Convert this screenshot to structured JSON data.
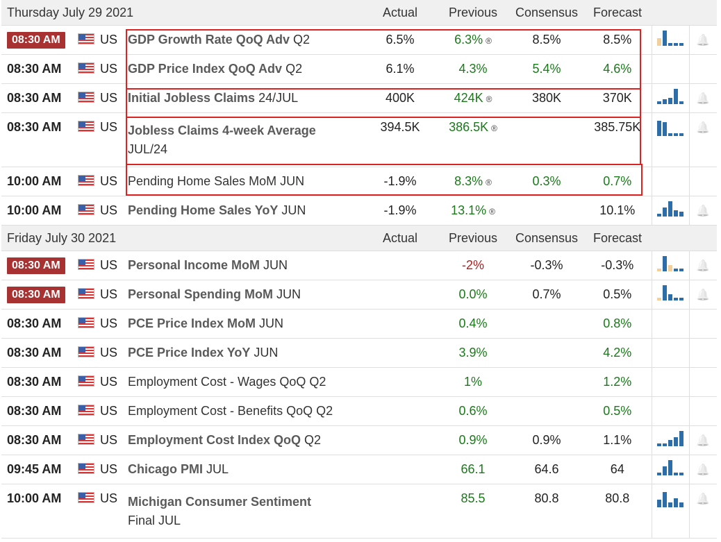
{
  "days": [
    {
      "date": "Thursday July 29 2021",
      "headers": {
        "actual": "Actual",
        "previous": "Previous",
        "consensus": "Consensus",
        "forecast": "Forecast"
      },
      "events": [
        {
          "time": "08:30 AM",
          "badge": true,
          "country": "US",
          "name_bold": "GDP Growth Rate QoQ Adv",
          "name_reg": " Q2",
          "actual": "6.5%",
          "previous": "6.3%",
          "prev_rev": "®",
          "prev_color": "green",
          "consensus": "8.5%",
          "cons_color": "",
          "forecast": "8.5%",
          "fc_color": "",
          "spark": [
            0.5,
            1,
            0.2,
            0.2,
            0.2
          ],
          "spark_colors": [
            "#f2cf9b",
            "#2e6ea8",
            "#2e6ea8",
            "#2e6ea8",
            "#2e6ea8"
          ],
          "bell": true
        },
        {
          "time": "08:30 AM",
          "badge": false,
          "country": "US",
          "name_bold": "GDP Price Index QoQ Adv",
          "name_reg": " Q2",
          "actual": "6.1%",
          "previous": "4.3%",
          "prev_rev": "",
          "prev_color": "green",
          "consensus": "5.4%",
          "cons_color": "green",
          "forecast": "4.6%",
          "fc_color": "green",
          "spark": [],
          "spark_colors": [],
          "bell": false
        },
        {
          "time": "08:30 AM",
          "badge": false,
          "country": "US",
          "name_bold": "Initial Jobless Claims",
          "name_reg": " 24/JUL",
          "actual": "400K",
          "previous": "424K",
          "prev_rev": "®",
          "prev_color": "green",
          "consensus": "380K",
          "cons_color": "",
          "forecast": "370K",
          "fc_color": "",
          "spark": [
            0.2,
            0.3,
            0.4,
            1,
            0.2
          ],
          "spark_colors": [
            "#2e6ea8",
            "#2e6ea8",
            "#2e6ea8",
            "#2e6ea8",
            "#2e6ea8"
          ],
          "bell": true
        },
        {
          "time": "08:30 AM",
          "badge": false,
          "country": "US",
          "name_bold": "Jobless Claims 4-week Average",
          "name_reg": "",
          "name_line2": "JUL/24",
          "actual": "394.5K",
          "previous": "386.5K",
          "prev_rev": "®",
          "prev_color": "green",
          "consensus": "",
          "cons_color": "",
          "forecast": "385.75K",
          "fc_color": "",
          "spark": [
            1,
            0.9,
            0.2,
            0.2,
            0.2
          ],
          "spark_colors": [
            "#2e6ea8",
            "#2e6ea8",
            "#2e6ea8",
            "#2e6ea8",
            "#2e6ea8"
          ],
          "bell": true
        },
        {
          "time": "10:00 AM",
          "badge": false,
          "country": "US",
          "name_bold": "",
          "name_reg": "Pending Home Sales MoM JUN",
          "actual": "-1.9%",
          "previous": "8.3%",
          "prev_rev": "®",
          "prev_color": "green",
          "consensus": "0.3%",
          "cons_color": "green",
          "forecast": "0.7%",
          "fc_color": "green",
          "spark": [],
          "spark_colors": [],
          "bell": false
        },
        {
          "time": "10:00 AM",
          "badge": false,
          "country": "US",
          "name_bold": "Pending Home Sales YoY",
          "name_reg": " JUN",
          "actual": "-1.9%",
          "previous": "13.1%",
          "prev_rev": "®",
          "prev_color": "green",
          "consensus": "",
          "cons_color": "",
          "forecast": "10.1%",
          "fc_color": "",
          "spark": [
            0.2,
            0.6,
            1,
            0.4,
            0.3
          ],
          "spark_colors": [
            "#2e6ea8",
            "#2e6ea8",
            "#2e6ea8",
            "#2e6ea8",
            "#2e6ea8"
          ],
          "bell": true
        }
      ]
    },
    {
      "date": "Friday July 30 2021",
      "headers": {
        "actual": "Actual",
        "previous": "Previous",
        "consensus": "Consensus",
        "forecast": "Forecast"
      },
      "events": [
        {
          "time": "08:30 AM",
          "badge": true,
          "country": "US",
          "name_bold": "Personal Income MoM",
          "name_reg": " JUN",
          "actual": "",
          "previous": "-2%",
          "prev_rev": "",
          "prev_color": "red",
          "consensus": "-0.3%",
          "cons_color": "",
          "forecast": "-0.3%",
          "fc_color": "",
          "spark": [
            0.2,
            1,
            0.4,
            0.2,
            0.2
          ],
          "spark_colors": [
            "#f2cf9b",
            "#2e6ea8",
            "#f2cf9b",
            "#2e6ea8",
            "#2e6ea8"
          ],
          "bell": true
        },
        {
          "time": "08:30 AM",
          "badge": true,
          "country": "US",
          "name_bold": "Personal Spending MoM",
          "name_reg": " JUN",
          "actual": "",
          "previous": "0.0%",
          "prev_rev": "",
          "prev_color": "green",
          "consensus": "0.7%",
          "cons_color": "",
          "forecast": "0.5%",
          "fc_color": "",
          "spark": [
            0.2,
            1,
            0.4,
            0.2,
            0.2
          ],
          "spark_colors": [
            "#f2cf9b",
            "#2e6ea8",
            "#2e6ea8",
            "#2e6ea8",
            "#2e6ea8"
          ],
          "bell": true
        },
        {
          "time": "08:30 AM",
          "badge": false,
          "country": "US",
          "name_bold": "PCE Price Index MoM",
          "name_reg": " JUN",
          "actual": "",
          "previous": "0.4%",
          "prev_rev": "",
          "prev_color": "green",
          "consensus": "",
          "cons_color": "",
          "forecast": "0.8%",
          "fc_color": "green",
          "spark": [],
          "spark_colors": [],
          "bell": false
        },
        {
          "time": "08:30 AM",
          "badge": false,
          "country": "US",
          "name_bold": "PCE Price Index YoY",
          "name_reg": " JUN",
          "actual": "",
          "previous": "3.9%",
          "prev_rev": "",
          "prev_color": "green",
          "consensus": "",
          "cons_color": "",
          "forecast": "4.2%",
          "fc_color": "green",
          "spark": [],
          "spark_colors": [],
          "bell": false
        },
        {
          "time": "08:30 AM",
          "badge": false,
          "country": "US",
          "name_bold": "",
          "name_reg": "Employment Cost - Wages QoQ Q2",
          "actual": "",
          "previous": "1%",
          "prev_rev": "",
          "prev_color": "green",
          "consensus": "",
          "cons_color": "",
          "forecast": "1.2%",
          "fc_color": "green",
          "spark": [],
          "spark_colors": [],
          "bell": false
        },
        {
          "time": "08:30 AM",
          "badge": false,
          "country": "US",
          "name_bold": "",
          "name_reg": "Employment Cost - Benefits QoQ Q2",
          "actual": "",
          "previous": "0.6%",
          "prev_rev": "",
          "prev_color": "green",
          "consensus": "",
          "cons_color": "",
          "forecast": "0.5%",
          "fc_color": "green",
          "spark": [],
          "spark_colors": [],
          "bell": false
        },
        {
          "time": "08:30 AM",
          "badge": false,
          "country": "US",
          "name_bold": "Employment Cost Index QoQ",
          "name_reg": " Q2",
          "actual": "",
          "previous": "0.9%",
          "prev_rev": "",
          "prev_color": "green",
          "consensus": "0.9%",
          "cons_color": "",
          "forecast": "1.1%",
          "fc_color": "",
          "spark": [
            0.2,
            0.2,
            0.4,
            0.6,
            1
          ],
          "spark_colors": [
            "#2e6ea8",
            "#2e6ea8",
            "#2e6ea8",
            "#2e6ea8",
            "#2e6ea8"
          ],
          "bell": true
        },
        {
          "time": "09:45 AM",
          "badge": false,
          "country": "US",
          "name_bold": "Chicago PMI",
          "name_reg": " JUL",
          "actual": "",
          "previous": "66.1",
          "prev_rev": "",
          "prev_color": "green",
          "consensus": "64.6",
          "cons_color": "",
          "forecast": "64",
          "fc_color": "",
          "spark": [
            0.2,
            0.6,
            1,
            0.2,
            0.2
          ],
          "spark_colors": [
            "#2e6ea8",
            "#2e6ea8",
            "#2e6ea8",
            "#2e6ea8",
            "#2e6ea8"
          ],
          "bell": true
        },
        {
          "time": "10:00 AM",
          "badge": false,
          "country": "US",
          "name_bold": "Michigan Consumer Sentiment",
          "name_reg": "",
          "name_line2": "Final JUL",
          "actual": "",
          "previous": "85.5",
          "prev_rev": "",
          "prev_color": "green",
          "consensus": "80.8",
          "cons_color": "",
          "forecast": "80.8",
          "fc_color": "",
          "spark": [
            0.5,
            1,
            0.3,
            0.6,
            0.3
          ],
          "spark_colors": [
            "#2e6ea8",
            "#2e6ea8",
            "#2e6ea8",
            "#2e6ea8",
            "#2e6ea8"
          ],
          "bell": true
        }
      ]
    }
  ],
  "bell_icon": "bell-icon",
  "highlight_color": "#d22222"
}
